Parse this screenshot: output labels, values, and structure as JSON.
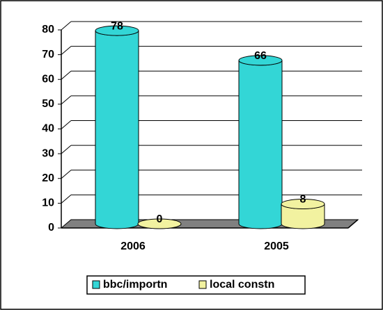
{
  "chart_data": {
    "type": "bar3d",
    "categories": [
      "2006",
      "2005"
    ],
    "series": [
      {
        "name": "bbc/importn",
        "color": "#33d6d6",
        "values": [
          78,
          66
        ]
      },
      {
        "name": "local constn",
        "color": "#f2f2a0",
        "values": [
          0,
          8
        ]
      }
    ],
    "ylim": [
      0,
      80
    ],
    "yticks": [
      0,
      10,
      20,
      30,
      40,
      50,
      60,
      70,
      80
    ],
    "grid": true,
    "legend": "bottom"
  }
}
